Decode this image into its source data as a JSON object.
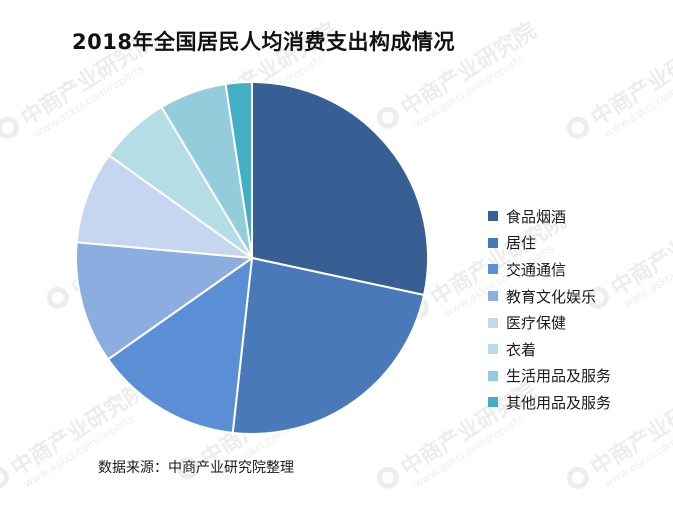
{
  "watermark": {
    "text": "中商产业研究院",
    "url": "www.askci.com/reports"
  },
  "source": "数据来源：中商产业研究院整理",
  "chart_data": {
    "type": "pie",
    "title": "2018年全国居民人均消费支出构成情况",
    "legend_position": "right",
    "categories": [
      "食品烟酒",
      "居住",
      "交通通信",
      "教育文化娱乐",
      "医疗保健",
      "衣着",
      "生活用品及服务",
      "其他用品及服务"
    ],
    "values": [
      28.4,
      23.4,
      13.5,
      11.2,
      8.5,
      6.5,
      6.2,
      2.4
    ],
    "colors": [
      "#375F93",
      "#4A79BA",
      "#5A8FD6",
      "#8CADE0",
      "#C6D6F0",
      "#B4DDE6",
      "#93CCDA",
      "#44AFC4"
    ]
  }
}
